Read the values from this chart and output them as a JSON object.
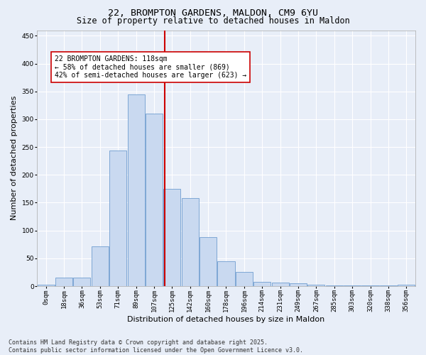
{
  "title_line1": "22, BROMPTON GARDENS, MALDON, CM9 6YU",
  "title_line2": "Size of property relative to detached houses in Maldon",
  "xlabel": "Distribution of detached houses by size in Maldon",
  "ylabel": "Number of detached properties",
  "footer_line1": "Contains HM Land Registry data © Crown copyright and database right 2025.",
  "footer_line2": "Contains public sector information licensed under the Open Government Licence v3.0.",
  "bin_labels": [
    "0sqm",
    "18sqm",
    "36sqm",
    "53sqm",
    "71sqm",
    "89sqm",
    "107sqm",
    "125sqm",
    "142sqm",
    "160sqm",
    "178sqm",
    "196sqm",
    "214sqm",
    "231sqm",
    "249sqm",
    "267sqm",
    "285sqm",
    "303sqm",
    "320sqm",
    "338sqm",
    "356sqm"
  ],
  "bar_values": [
    2,
    15,
    15,
    72,
    244,
    345,
    310,
    175,
    158,
    88,
    45,
    25,
    8,
    6,
    5,
    2,
    1,
    1,
    1,
    1,
    2
  ],
  "n_bins": 21,
  "bar_color": "#c9d9f0",
  "bar_edge_color": "#5b8fc9",
  "bg_color": "#e8eef8",
  "grid_color": "#ffffff",
  "vline_bin": 6.6,
  "vline_color": "#cc0000",
  "annotation_text": "22 BROMPTON GARDENS: 118sqm\n← 58% of detached houses are smaller (869)\n42% of semi-detached houses are larger (623) →",
  "annotation_box_color": "#ffffff",
  "annotation_box_edge": "#cc0000",
  "ylim": [
    0,
    460
  ],
  "yticks": [
    0,
    50,
    100,
    150,
    200,
    250,
    300,
    350,
    400,
    450
  ],
  "title_fontsize": 9.5,
  "subtitle_fontsize": 8.5,
  "axis_label_fontsize": 8,
  "tick_fontsize": 6.5,
  "annotation_fontsize": 7,
  "footer_fontsize": 6
}
